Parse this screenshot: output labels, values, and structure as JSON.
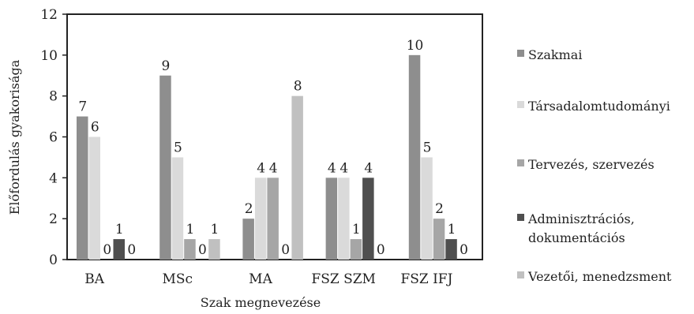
{
  "chart_data": {
    "type": "bar",
    "xlabel": "Szak megnevezése",
    "ylabel": "Előfordulás gyakorisága",
    "ylim": [
      0,
      12
    ],
    "yticks": [
      0,
      2,
      4,
      6,
      8,
      10,
      12
    ],
    "grid": false,
    "legend_position": "right",
    "categories": [
      "BA",
      "MSc",
      "MA",
      "FSZ SZM",
      "FSZ IFJ"
    ],
    "series": [
      {
        "name": "Szakmai",
        "values": [
          7,
          9,
          2,
          4,
          10
        ],
        "color": "#8e8e8e"
      },
      {
        "name": "Társadalomtudományi",
        "values": [
          6,
          5,
          4,
          4,
          5
        ],
        "color": "#dadada"
      },
      {
        "name": "Tervezés, szervezés",
        "values": [
          0,
          1,
          4,
          1,
          2
        ],
        "color": "#a6a6a6"
      },
      {
        "name": "Adminisztrációs, dokumentációs",
        "values": [
          1,
          0,
          0,
          4,
          1
        ],
        "color": "#4f4f4f"
      },
      {
        "name": "Vezetői, menedzsment",
        "values": [
          0,
          1,
          8,
          0,
          0
        ],
        "color": "#c0c0c0"
      }
    ],
    "legend_lines": [
      [
        "Szakmai"
      ],
      [
        "Társadalomtudományi"
      ],
      [
        "Tervezés, szervezés"
      ],
      [
        "Adminisztrációs,",
        "dokumentációs"
      ],
      [
        "Vezetői, menedzsment"
      ]
    ]
  }
}
